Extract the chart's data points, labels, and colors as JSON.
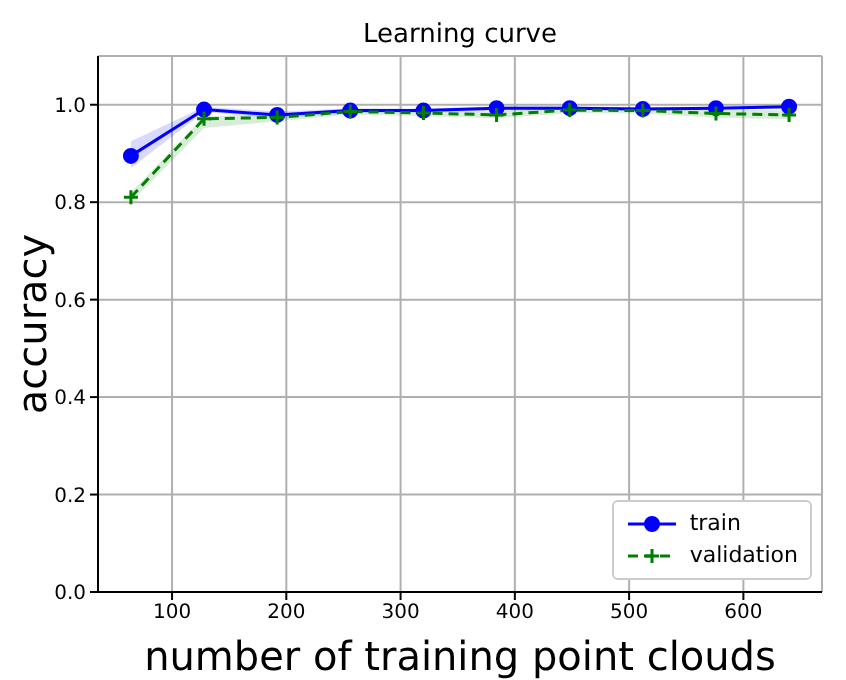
{
  "chart_data": {
    "type": "line",
    "title": "Learning curve",
    "xlabel": "number of training point clouds",
    "ylabel": "accuracy",
    "x": [
      64,
      128,
      192,
      256,
      320,
      384,
      448,
      512,
      576,
      640
    ],
    "series": [
      {
        "name": "train",
        "color": "#0000ff",
        "marker": "circle",
        "line_style": "solid",
        "values": [
          0.895,
          0.99,
          0.979,
          0.988,
          0.988,
          0.993,
          0.993,
          0.991,
          0.993,
          0.996
        ],
        "lower": [
          0.87,
          0.985,
          0.972,
          0.983,
          0.984,
          0.988,
          0.989,
          0.987,
          0.99,
          0.993
        ],
        "upper": [
          0.925,
          0.996,
          0.986,
          0.993,
          0.992,
          0.997,
          0.997,
          0.995,
          0.996,
          0.999
        ]
      },
      {
        "name": "validation",
        "color": "#008000",
        "marker": "cross",
        "line_style": "dashed",
        "values": [
          0.81,
          0.971,
          0.974,
          0.986,
          0.983,
          0.979,
          0.989,
          0.988,
          0.982,
          0.979
        ],
        "lower": [
          0.8,
          0.952,
          0.966,
          0.98,
          0.977,
          0.972,
          0.983,
          0.982,
          0.974,
          0.97
        ],
        "upper": [
          0.82,
          0.976,
          0.982,
          0.992,
          0.989,
          0.986,
          0.995,
          0.994,
          0.99,
          0.988
        ]
      }
    ],
    "xlim": [
      35.2,
      668.8
    ],
    "xticks": [
      100,
      200,
      300,
      400,
      500,
      600
    ],
    "ylim": [
      0,
      1.1
    ],
    "yticks": [
      {
        "value": 0,
        "label": "0.0"
      },
      {
        "value": 0.2,
        "label": "0.2"
      },
      {
        "value": 0.4,
        "label": "0.4"
      },
      {
        "value": 0.6,
        "label": "0.6"
      },
      {
        "value": 0.8,
        "label": "0.8"
      },
      {
        "value": 1.0,
        "label": "1.0"
      }
    ],
    "grid": true,
    "legend": "bottom right"
  }
}
